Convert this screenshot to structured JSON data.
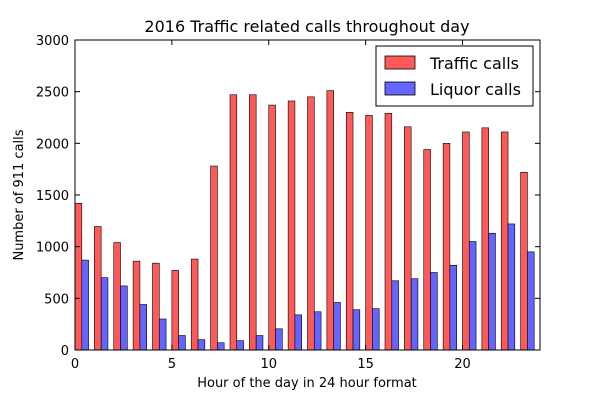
{
  "chart_data": {
    "type": "bar",
    "title": "2016 Traffic related calls throughout day",
    "xlabel": "Hour of the day in 24 hour format",
    "ylabel": "Number of 911 calls",
    "xlim": [
      0,
      24
    ],
    "ylim": [
      0,
      3000
    ],
    "xticks": [
      0,
      5,
      10,
      15,
      20
    ],
    "yticks": [
      0,
      500,
      1000,
      1500,
      2000,
      2500,
      3000
    ],
    "grid": false,
    "legend_position": "top-right",
    "x": [
      0,
      1,
      2,
      3,
      4,
      5,
      6,
      7,
      8,
      9,
      10,
      11,
      12,
      13,
      14,
      15,
      16,
      17,
      18,
      19,
      20,
      21,
      22,
      23
    ],
    "series": [
      {
        "name": "Traffic calls",
        "color": "#ff5a5a",
        "values": [
          1420,
          1195,
          1040,
          860,
          840,
          770,
          880,
          1780,
          2470,
          2470,
          2370,
          2410,
          2450,
          2510,
          2300,
          2270,
          2290,
          2160,
          1940,
          2000,
          2110,
          2150,
          2110,
          1720
        ]
      },
      {
        "name": "Liquor calls",
        "color": "#6464ff",
        "values": [
          870,
          700,
          620,
          440,
          300,
          140,
          100,
          70,
          90,
          140,
          205,
          340,
          370,
          460,
          390,
          400,
          670,
          690,
          750,
          820,
          1050,
          1130,
          1220,
          950
        ]
      }
    ]
  }
}
